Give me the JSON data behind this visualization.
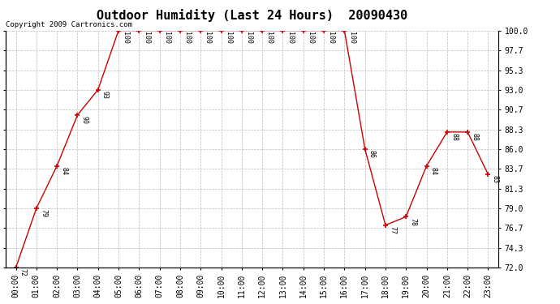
{
  "title": "Outdoor Humidity (Last 24 Hours)  20090430",
  "copyright": "Copyright 2009 Cartronics.com",
  "x_labels": [
    "00:00",
    "01:00",
    "02:00",
    "03:00",
    "04:00",
    "05:00",
    "06:00",
    "07:00",
    "08:00",
    "09:00",
    "10:00",
    "11:00",
    "12:00",
    "13:00",
    "14:00",
    "15:00",
    "16:00",
    "17:00",
    "18:00",
    "19:00",
    "20:00",
    "21:00",
    "22:00",
    "23:00"
  ],
  "x_values": [
    0,
    1,
    2,
    3,
    4,
    5,
    6,
    7,
    8,
    9,
    10,
    11,
    12,
    13,
    14,
    15,
    16,
    17,
    18,
    19,
    20,
    21,
    22,
    23
  ],
  "y_values": [
    72,
    79,
    84,
    90,
    93,
    100,
    100,
    100,
    100,
    100,
    100,
    100,
    100,
    100,
    100,
    100,
    100,
    86,
    77,
    78,
    84,
    88,
    88,
    83
  ],
  "ylim": [
    72.0,
    100.0
  ],
  "yticks": [
    72.0,
    74.3,
    76.7,
    79.0,
    81.3,
    83.7,
    86.0,
    88.3,
    90.7,
    93.0,
    95.3,
    97.7,
    100.0
  ],
  "line_color": "#cc0000",
  "marker_color": "#cc0000",
  "bg_color": "#ffffff",
  "grid_color": "#bbbbbb",
  "title_fontsize": 11,
  "copyright_fontsize": 6.5,
  "label_fontsize": 6,
  "tick_fontsize": 7
}
